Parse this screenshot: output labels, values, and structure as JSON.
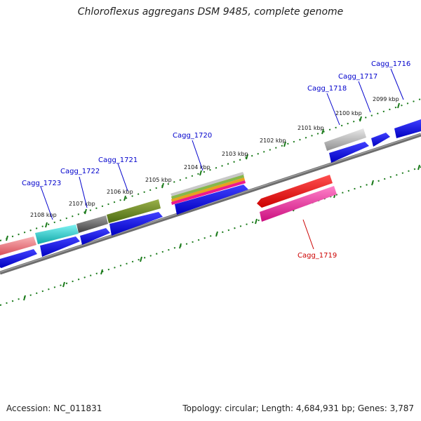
{
  "title": "Chloroflexus aggregans DSM 9485, complete genome",
  "footer": {
    "accession": "Accession: NC_011831",
    "summary": "Topology: circular; Length: 4,684,931 bp; Genes: 3,787"
  },
  "colors": {
    "backbone": "#7d7d7d",
    "tick": "#1a7a1a",
    "label_forward": "#0000cc",
    "label_reverse": "#cc0000",
    "cds": "#0000ee"
  },
  "scale": {
    "ticks": [
      "2099 kbp",
      "2100 kbp",
      "2101 kbp",
      "2102 kbp",
      "2103 kbp",
      "2104 kbp",
      "2105 kbp",
      "2106 kbp",
      "2107 kbp",
      "2108 kbp"
    ]
  },
  "gene_labels": {
    "cagg_1716": "Cagg_1716",
    "cagg_1717": "Cagg_1717",
    "cagg_1718": "Cagg_1718",
    "cagg_1720": "Cagg_1720",
    "cagg_1721": "Cagg_1721",
    "cagg_1722": "Cagg_1722",
    "cagg_1723": "Cagg_1723",
    "cagg_1719": "Cagg_1719"
  },
  "features": [
    {
      "gene": "Cagg_1723",
      "strand": "+",
      "color": "#ee7a80",
      "icon": "flat-segment-icon"
    },
    {
      "gene": "Cagg_1722",
      "strand": "+",
      "color": "#1ec8c8",
      "icon": "flat-segment-icon"
    },
    {
      "gene": "Cagg_1721",
      "strand": "+",
      "color": "#5a5a5a",
      "icon": "flat-segment-icon"
    },
    {
      "gene": "Cagg_1720",
      "strand": "+",
      "color": "#5a7a1a",
      "icon": "flat-segment-icon"
    },
    {
      "gene": "Cagg_1719",
      "strand": "-",
      "color": "#ee0000",
      "icon": "arrow-left-icon"
    },
    {
      "gene": "Cagg_1718",
      "strand": "+",
      "color": "#a0a0a0",
      "icon": "flat-segment-icon"
    },
    {
      "gene": "Cagg_1716",
      "strand": "+",
      "color": "#0000ee",
      "icon": "arrow-right-icon"
    }
  ]
}
